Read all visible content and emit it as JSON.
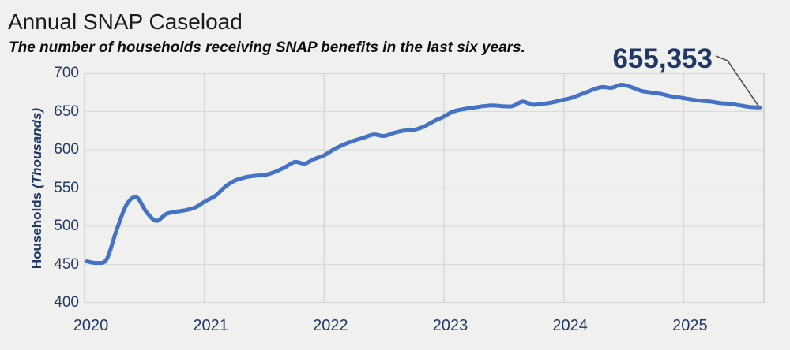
{
  "header": {
    "title": "Annual SNAP Caseload",
    "subtitle": "The number of households receiving SNAP benefits in the last six years."
  },
  "chart_data": {
    "type": "line",
    "title": "Annual SNAP Caseload",
    "subtitle": "The number of households receiving SNAP benefits in the last six years.",
    "ylabel": "Households (Thousands)",
    "ylabel_main": "Households",
    "ylabel_unit": "(Thousands)",
    "ylim": [
      400,
      700
    ],
    "y_ticks": [
      700,
      650,
      600,
      550,
      500,
      450,
      400
    ],
    "x_tick_labels": [
      "2020",
      "2021",
      "2022",
      "2023",
      "2024",
      "2025"
    ],
    "x_start": "2020-01",
    "x_end": "2025-09",
    "x_frequency": "monthly",
    "grid": true,
    "legend": "none",
    "line_color": "#4472C4",
    "axis_label_color": "#1F3864",
    "annotation": {
      "label": "655,353",
      "value_households": 655353,
      "points_to": "last data point (2025-09)"
    },
    "series": [
      {
        "name": "Households (Thousands)",
        "monthly_values_thousands": [
          454,
          452,
          457,
          495,
          528,
          538,
          519,
          507,
          516,
          519,
          521,
          525,
          533,
          540,
          552,
          560,
          564,
          566,
          567,
          571,
          577,
          584,
          582,
          588,
          593,
          601,
          607,
          612,
          616,
          620,
          618,
          622,
          625,
          626,
          630,
          637,
          643,
          650,
          653,
          655,
          657,
          658,
          657,
          657,
          663,
          659,
          660,
          662,
          665,
          668,
          673,
          678,
          682,
          681,
          685,
          682,
          677,
          675,
          673,
          670,
          668,
          666,
          664,
          663,
          661,
          660,
          658,
          656,
          655.353
        ]
      }
    ]
  }
}
